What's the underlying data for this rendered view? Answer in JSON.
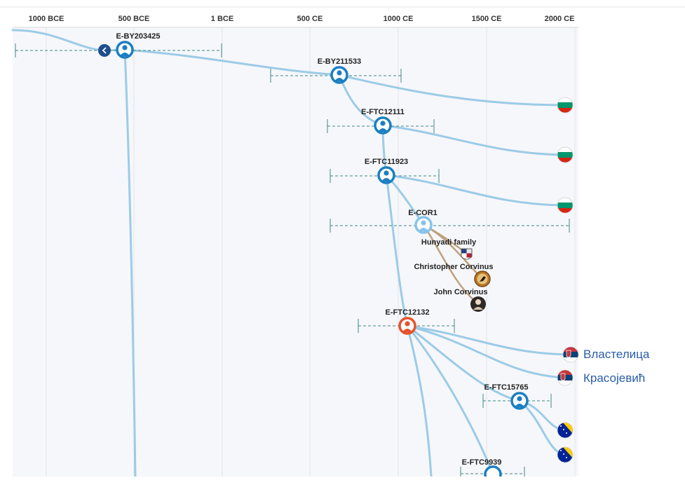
{
  "axis": {
    "ticks": [
      "1000 BCE",
      "500 BCE",
      "1 BCE",
      "500 CE",
      "1000 CE",
      "1500 CE",
      "2000 CE"
    ]
  },
  "nodes": [
    {
      "id": "E-BY203425"
    },
    {
      "id": "E-BY211533"
    },
    {
      "id": "E-FTC12111"
    },
    {
      "id": "E-FTC11923"
    },
    {
      "id": "E-COR1"
    },
    {
      "id": "E-FTC12132"
    },
    {
      "id": "E-FTC15765"
    },
    {
      "id": "E-FTC9939"
    }
  ],
  "people": [
    {
      "name": "Hunyadi family",
      "icon": "coat-of-arms-icon"
    },
    {
      "name": "Christopher Corvinus",
      "icon": "raven-emblem-icon"
    },
    {
      "name": "John Corvinus",
      "icon": "portrait-icon"
    }
  ],
  "surnames": [
    {
      "label": "Властелица",
      "flag": "serbia-flag-icon"
    },
    {
      "label": "Красојевић",
      "flag": "serbia-flag-icon"
    }
  ],
  "flags": {
    "bulgaria": [
      "#ffffff",
      "#00966e",
      "#d62612"
    ],
    "serbia": [
      "#c6363c",
      "#0c4076",
      "#ffffff"
    ],
    "bosnia": [
      "#002395",
      "#fecb00"
    ]
  },
  "colors": {
    "branch": "#9ccbe6",
    "node": "#1b7fc1",
    "node_highlight": "#e8512a",
    "node_light": "#86c3ea",
    "person_link": "#bfa17e",
    "range": "#3f8a82",
    "back_button": "#1d4f8c"
  },
  "back_icon": "chevron-left-icon"
}
